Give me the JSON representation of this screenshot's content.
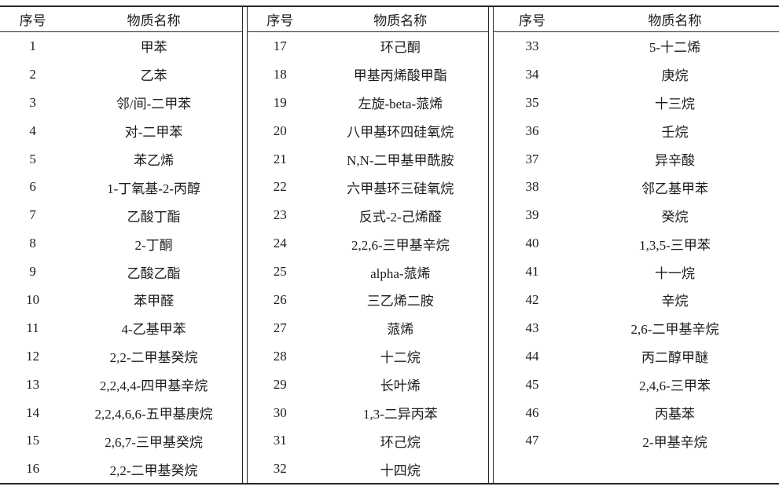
{
  "table": {
    "column_headers": {
      "no": "序号",
      "name": "物质名称"
    },
    "groups": [
      {
        "rows": [
          {
            "no": "1",
            "name": "甲苯"
          },
          {
            "no": "2",
            "name": "乙苯"
          },
          {
            "no": "3",
            "name": "邻/间-二甲苯"
          },
          {
            "no": "4",
            "name": "对-二甲苯"
          },
          {
            "no": "5",
            "name": "苯乙烯"
          },
          {
            "no": "6",
            "name": "1-丁氧基-2-丙醇"
          },
          {
            "no": "7",
            "name": "乙酸丁酯"
          },
          {
            "no": "8",
            "name": "2-丁酮"
          },
          {
            "no": "9",
            "name": "乙酸乙酯"
          },
          {
            "no": "10",
            "name": "苯甲醛"
          },
          {
            "no": "11",
            "name": "4-乙基甲苯"
          },
          {
            "no": "12",
            "name": "2,2-二甲基癸烷"
          },
          {
            "no": "13",
            "name": "2,2,4,4-四甲基辛烷"
          },
          {
            "no": "14",
            "name": "2,2,4,6,6-五甲基庚烷"
          },
          {
            "no": "15",
            "name": "2,6,7-三甲基癸烷"
          },
          {
            "no": "16",
            "name": "2,2-二甲基癸烷"
          }
        ]
      },
      {
        "rows": [
          {
            "no": "17",
            "name": "环己酮"
          },
          {
            "no": "18",
            "name": "甲基丙烯酸甲酯"
          },
          {
            "no": "19",
            "name": "左旋-beta-蒎烯"
          },
          {
            "no": "20",
            "name": "八甲基环四硅氧烷"
          },
          {
            "no": "21",
            "name": "N,N-二甲基甲酰胺"
          },
          {
            "no": "22",
            "name": "六甲基环三硅氧烷"
          },
          {
            "no": "23",
            "name": "反式-2-己烯醛"
          },
          {
            "no": "24",
            "name": "2,2,6-三甲基辛烷"
          },
          {
            "no": "25",
            "name": "alpha-蒎烯"
          },
          {
            "no": "26",
            "name": "三乙烯二胺"
          },
          {
            "no": "27",
            "name": "蒎烯"
          },
          {
            "no": "28",
            "name": "十二烷"
          },
          {
            "no": "29",
            "name": "长叶烯"
          },
          {
            "no": "30",
            "name": "1,3-二异丙苯"
          },
          {
            "no": "31",
            "name": "环己烷"
          },
          {
            "no": "32",
            "name": "十四烷"
          }
        ]
      },
      {
        "rows": [
          {
            "no": "33",
            "name": "5-十二烯"
          },
          {
            "no": "34",
            "name": "庚烷"
          },
          {
            "no": "35",
            "name": "十三烷"
          },
          {
            "no": "36",
            "name": "壬烷"
          },
          {
            "no": "37",
            "name": "异辛酸"
          },
          {
            "no": "38",
            "name": "邻乙基甲苯"
          },
          {
            "no": "39",
            "name": "癸烷"
          },
          {
            "no": "40",
            "name": "1,3,5-三甲苯"
          },
          {
            "no": "41",
            "name": "十一烷"
          },
          {
            "no": "42",
            "name": "辛烷"
          },
          {
            "no": "43",
            "name": "2,6-二甲基辛烷"
          },
          {
            "no": "44",
            "name": "丙二醇甲醚"
          },
          {
            "no": "45",
            "name": "2,4,6-三甲苯"
          },
          {
            "no": "46",
            "name": "丙基苯"
          },
          {
            "no": "47",
            "name": "2-甲基辛烷"
          }
        ]
      }
    ]
  },
  "colors": {
    "background": "#ffffff",
    "text": "#1c1c1c",
    "rule": "#252525"
  }
}
